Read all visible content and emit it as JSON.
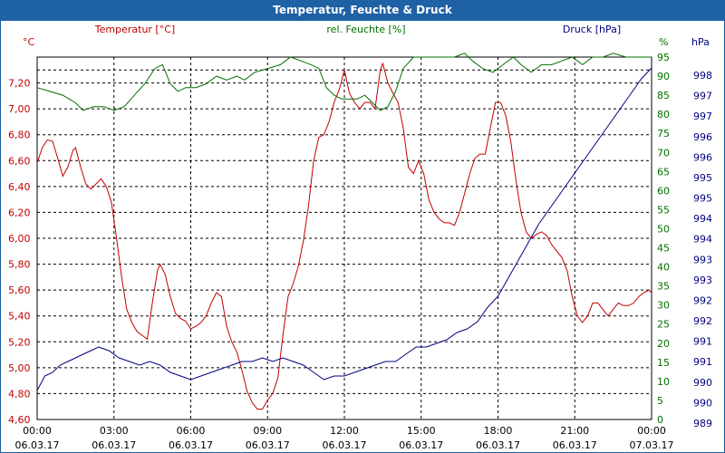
{
  "window": {
    "title": "Temperatur, Feuchte & Druck"
  },
  "chart_data": {
    "type": "line",
    "title": "Temperatur, Feuchte & Druck",
    "x_hours": [
      0,
      24
    ],
    "x_ticks": [
      {
        "h": 0,
        "time": "00:00",
        "date": "06.03.17"
      },
      {
        "h": 3,
        "time": "03:00",
        "date": "06.03.17"
      },
      {
        "h": 6,
        "time": "06:00",
        "date": "06.03.17"
      },
      {
        "h": 9,
        "time": "09:00",
        "date": "06.03.17"
      },
      {
        "h": 12,
        "time": "12:00",
        "date": "06.03.17"
      },
      {
        "h": 15,
        "time": "15:00",
        "date": "06.03.17"
      },
      {
        "h": 18,
        "time": "18:00",
        "date": "06.03.17"
      },
      {
        "h": 21,
        "time": "21:00",
        "date": "06.03.17"
      },
      {
        "h": 24,
        "time": "00:00",
        "date": "07.03.17"
      }
    ],
    "axes": {
      "temperature": {
        "unit": "°C",
        "label": "Temperatur [°C]",
        "range": [
          4.6,
          7.4
        ],
        "color": "#c00000",
        "ticks": [
          "7,20",
          "7,00",
          "6,80",
          "6,60",
          "6,40",
          "6,20",
          "6,00",
          "5,80",
          "5,60",
          "5,40",
          "5,20",
          "5,00",
          "4,80",
          "4,60"
        ]
      },
      "humidity": {
        "unit": "%",
        "label": "rel. Feuchte [%]",
        "range": [
          0,
          95
        ],
        "color": "#007000",
        "ticks": [
          "95",
          "90",
          "85",
          "80",
          "75",
          "70",
          "65",
          "60",
          "55",
          "50",
          "45",
          "40",
          "35",
          "30",
          "25",
          "20",
          "15",
          "10",
          "5",
          "0"
        ]
      },
      "pressure": {
        "unit": "hPa",
        "label": "Druck [hPa]",
        "range": [
          988.5,
          998.5
        ],
        "color": "#000080",
        "ticks": [
          "998",
          "997",
          "997",
          "996",
          "996",
          "995",
          "995",
          "994",
          "994",
          "993",
          "993",
          "992",
          "992",
          "991",
          "991",
          "990",
          "990",
          "989"
        ]
      }
    },
    "series": [
      {
        "name": "Temperatur [°C]",
        "axis": "temperature",
        "color": "#c00000",
        "points": [
          [
            0,
            6.58
          ],
          [
            0.2,
            6.7
          ],
          [
            0.4,
            6.76
          ],
          [
            0.6,
            6.75
          ],
          [
            0.8,
            6.62
          ],
          [
            1.0,
            6.48
          ],
          [
            1.2,
            6.55
          ],
          [
            1.4,
            6.68
          ],
          [
            1.5,
            6.7
          ],
          [
            1.7,
            6.55
          ],
          [
            1.9,
            6.42
          ],
          [
            2.1,
            6.38
          ],
          [
            2.3,
            6.42
          ],
          [
            2.5,
            6.46
          ],
          [
            2.7,
            6.4
          ],
          [
            2.9,
            6.28
          ],
          [
            3.1,
            6.0
          ],
          [
            3.3,
            5.7
          ],
          [
            3.5,
            5.45
          ],
          [
            3.7,
            5.35
          ],
          [
            3.9,
            5.28
          ],
          [
            4.1,
            5.25
          ],
          [
            4.3,
            5.22
          ],
          [
            4.5,
            5.5
          ],
          [
            4.7,
            5.75
          ],
          [
            4.8,
            5.8
          ],
          [
            5.0,
            5.72
          ],
          [
            5.2,
            5.55
          ],
          [
            5.4,
            5.42
          ],
          [
            5.6,
            5.38
          ],
          [
            5.8,
            5.36
          ],
          [
            6.0,
            5.3
          ],
          [
            6.2,
            5.32
          ],
          [
            6.4,
            5.35
          ],
          [
            6.6,
            5.4
          ],
          [
            6.8,
            5.5
          ],
          [
            7.0,
            5.58
          ],
          [
            7.2,
            5.55
          ],
          [
            7.4,
            5.32
          ],
          [
            7.6,
            5.2
          ],
          [
            7.8,
            5.12
          ],
          [
            8.0,
            4.98
          ],
          [
            8.2,
            4.82
          ],
          [
            8.4,
            4.73
          ],
          [
            8.6,
            4.68
          ],
          [
            8.8,
            4.68
          ],
          [
            9.0,
            4.75
          ],
          [
            9.2,
            4.8
          ],
          [
            9.4,
            4.92
          ],
          [
            9.6,
            5.25
          ],
          [
            9.8,
            5.55
          ],
          [
            10.0,
            5.65
          ],
          [
            10.2,
            5.78
          ],
          [
            10.4,
            5.98
          ],
          [
            10.6,
            6.25
          ],
          [
            10.8,
            6.6
          ],
          [
            11.0,
            6.78
          ],
          [
            11.2,
            6.8
          ],
          [
            11.4,
            6.9
          ],
          [
            11.6,
            7.05
          ],
          [
            11.8,
            7.15
          ],
          [
            12.0,
            7.3
          ],
          [
            12.2,
            7.12
          ],
          [
            12.4,
            7.05
          ],
          [
            12.6,
            7.0
          ],
          [
            12.8,
            7.05
          ],
          [
            13.0,
            7.05
          ],
          [
            13.2,
            7.0
          ],
          [
            13.4,
            7.3
          ],
          [
            13.5,
            7.35
          ],
          [
            13.7,
            7.2
          ],
          [
            13.9,
            7.12
          ],
          [
            14.1,
            7.05
          ],
          [
            14.3,
            6.85
          ],
          [
            14.5,
            6.55
          ],
          [
            14.7,
            6.5
          ],
          [
            14.9,
            6.6
          ],
          [
            15.1,
            6.5
          ],
          [
            15.3,
            6.3
          ],
          [
            15.5,
            6.2
          ],
          [
            15.7,
            6.15
          ],
          [
            15.9,
            6.12
          ],
          [
            16.1,
            6.12
          ],
          [
            16.3,
            6.1
          ],
          [
            16.5,
            6.2
          ],
          [
            16.7,
            6.35
          ],
          [
            16.9,
            6.5
          ],
          [
            17.1,
            6.62
          ],
          [
            17.3,
            6.65
          ],
          [
            17.5,
            6.65
          ],
          [
            17.7,
            6.85
          ],
          [
            17.9,
            7.05
          ],
          [
            18.1,
            7.05
          ],
          [
            18.3,
            6.95
          ],
          [
            18.5,
            6.75
          ],
          [
            18.7,
            6.45
          ],
          [
            18.9,
            6.2
          ],
          [
            19.1,
            6.05
          ],
          [
            19.3,
            6.0
          ],
          [
            19.5,
            6.03
          ],
          [
            19.7,
            6.05
          ],
          [
            19.9,
            6.02
          ],
          [
            20.1,
            5.95
          ],
          [
            20.3,
            5.9
          ],
          [
            20.5,
            5.85
          ],
          [
            20.7,
            5.75
          ],
          [
            20.9,
            5.55
          ],
          [
            21.1,
            5.4
          ],
          [
            21.3,
            5.35
          ],
          [
            21.5,
            5.4
          ],
          [
            21.7,
            5.5
          ],
          [
            21.9,
            5.5
          ],
          [
            22.1,
            5.45
          ],
          [
            22.3,
            5.4
          ],
          [
            22.5,
            5.45
          ],
          [
            22.7,
            5.5
          ],
          [
            22.9,
            5.48
          ],
          [
            23.1,
            5.48
          ],
          [
            23.3,
            5.5
          ],
          [
            23.5,
            5.55
          ],
          [
            23.7,
            5.58
          ],
          [
            23.9,
            5.6
          ],
          [
            24.0,
            5.58
          ]
        ]
      },
      {
        "name": "rel. Feuchte [%]",
        "axis": "humidity",
        "color": "#007000",
        "points": [
          [
            0,
            87
          ],
          [
            0.5,
            86
          ],
          [
            1.0,
            85
          ],
          [
            1.5,
            83
          ],
          [
            1.8,
            81
          ],
          [
            2.2,
            82
          ],
          [
            2.6,
            82
          ],
          [
            3.0,
            81
          ],
          [
            3.4,
            82
          ],
          [
            3.8,
            85
          ],
          [
            4.2,
            88
          ],
          [
            4.6,
            92
          ],
          [
            4.9,
            93
          ],
          [
            5.2,
            88
          ],
          [
            5.5,
            86
          ],
          [
            5.8,
            87
          ],
          [
            6.2,
            87
          ],
          [
            6.6,
            88
          ],
          [
            7.0,
            90
          ],
          [
            7.4,
            89
          ],
          [
            7.8,
            90
          ],
          [
            8.1,
            89
          ],
          [
            8.5,
            91
          ],
          [
            9.0,
            92
          ],
          [
            9.5,
            93
          ],
          [
            9.9,
            95
          ],
          [
            10.3,
            94
          ],
          [
            10.7,
            93
          ],
          [
            11.0,
            92
          ],
          [
            11.3,
            87
          ],
          [
            11.6,
            85
          ],
          [
            11.9,
            84
          ],
          [
            12.2,
            84
          ],
          [
            12.5,
            84
          ],
          [
            12.8,
            85
          ],
          [
            13.1,
            83
          ],
          [
            13.4,
            81
          ],
          [
            13.7,
            82
          ],
          [
            14.0,
            86
          ],
          [
            14.3,
            92
          ],
          [
            14.7,
            95
          ],
          [
            15.0,
            95
          ],
          [
            15.5,
            95
          ],
          [
            16.0,
            95
          ],
          [
            16.3,
            95
          ],
          [
            16.7,
            96
          ],
          [
            17.0,
            94
          ],
          [
            17.4,
            92
          ],
          [
            17.8,
            91
          ],
          [
            18.2,
            93
          ],
          [
            18.6,
            95
          ],
          [
            18.9,
            93
          ],
          [
            19.3,
            91
          ],
          [
            19.7,
            93
          ],
          [
            20.1,
            93
          ],
          [
            20.5,
            94
          ],
          [
            20.9,
            95
          ],
          [
            21.3,
            93
          ],
          [
            21.7,
            95
          ],
          [
            22.1,
            95
          ],
          [
            22.5,
            96
          ],
          [
            23.0,
            95
          ],
          [
            23.5,
            95
          ],
          [
            24.0,
            95
          ]
        ]
      },
      {
        "name": "Druck [hPa]",
        "axis": "pressure",
        "color": "#000080",
        "points": [
          [
            0,
            989.3
          ],
          [
            0.3,
            989.7
          ],
          [
            0.6,
            989.8
          ],
          [
            0.9,
            990.0
          ],
          [
            1.2,
            990.1
          ],
          [
            1.5,
            990.2
          ],
          [
            1.8,
            990.3
          ],
          [
            2.1,
            990.4
          ],
          [
            2.4,
            990.5
          ],
          [
            2.8,
            990.4
          ],
          [
            3.2,
            990.2
          ],
          [
            3.6,
            990.1
          ],
          [
            4.0,
            990.0
          ],
          [
            4.4,
            990.1
          ],
          [
            4.8,
            990.0
          ],
          [
            5.2,
            989.8
          ],
          [
            5.6,
            989.7
          ],
          [
            6.0,
            989.6
          ],
          [
            6.4,
            989.7
          ],
          [
            6.8,
            989.8
          ],
          [
            7.2,
            989.9
          ],
          [
            7.6,
            990.0
          ],
          [
            8.0,
            990.1
          ],
          [
            8.4,
            990.1
          ],
          [
            8.8,
            990.2
          ],
          [
            9.2,
            990.1
          ],
          [
            9.6,
            990.2
          ],
          [
            10.0,
            990.1
          ],
          [
            10.4,
            990.0
          ],
          [
            10.8,
            989.8
          ],
          [
            11.2,
            989.6
          ],
          [
            11.6,
            989.7
          ],
          [
            12.0,
            989.7
          ],
          [
            12.4,
            989.8
          ],
          [
            12.8,
            989.9
          ],
          [
            13.2,
            990.0
          ],
          [
            13.6,
            990.1
          ],
          [
            14.0,
            990.1
          ],
          [
            14.4,
            990.3
          ],
          [
            14.8,
            990.5
          ],
          [
            15.2,
            990.5
          ],
          [
            15.6,
            990.6
          ],
          [
            16.0,
            990.7
          ],
          [
            16.4,
            990.9
          ],
          [
            16.8,
            991.0
          ],
          [
            17.2,
            991.2
          ],
          [
            17.6,
            991.6
          ],
          [
            18.0,
            991.9
          ],
          [
            18.4,
            992.4
          ],
          [
            18.8,
            992.9
          ],
          [
            19.2,
            993.4
          ],
          [
            19.6,
            993.9
          ],
          [
            20.0,
            994.3
          ],
          [
            20.4,
            994.7
          ],
          [
            20.8,
            995.1
          ],
          [
            21.2,
            995.5
          ],
          [
            21.6,
            995.9
          ],
          [
            22.0,
            996.3
          ],
          [
            22.4,
            996.7
          ],
          [
            22.8,
            997.1
          ],
          [
            23.2,
            997.5
          ],
          [
            23.6,
            997.9
          ],
          [
            24.0,
            998.2
          ]
        ]
      }
    ],
    "grid": true
  }
}
